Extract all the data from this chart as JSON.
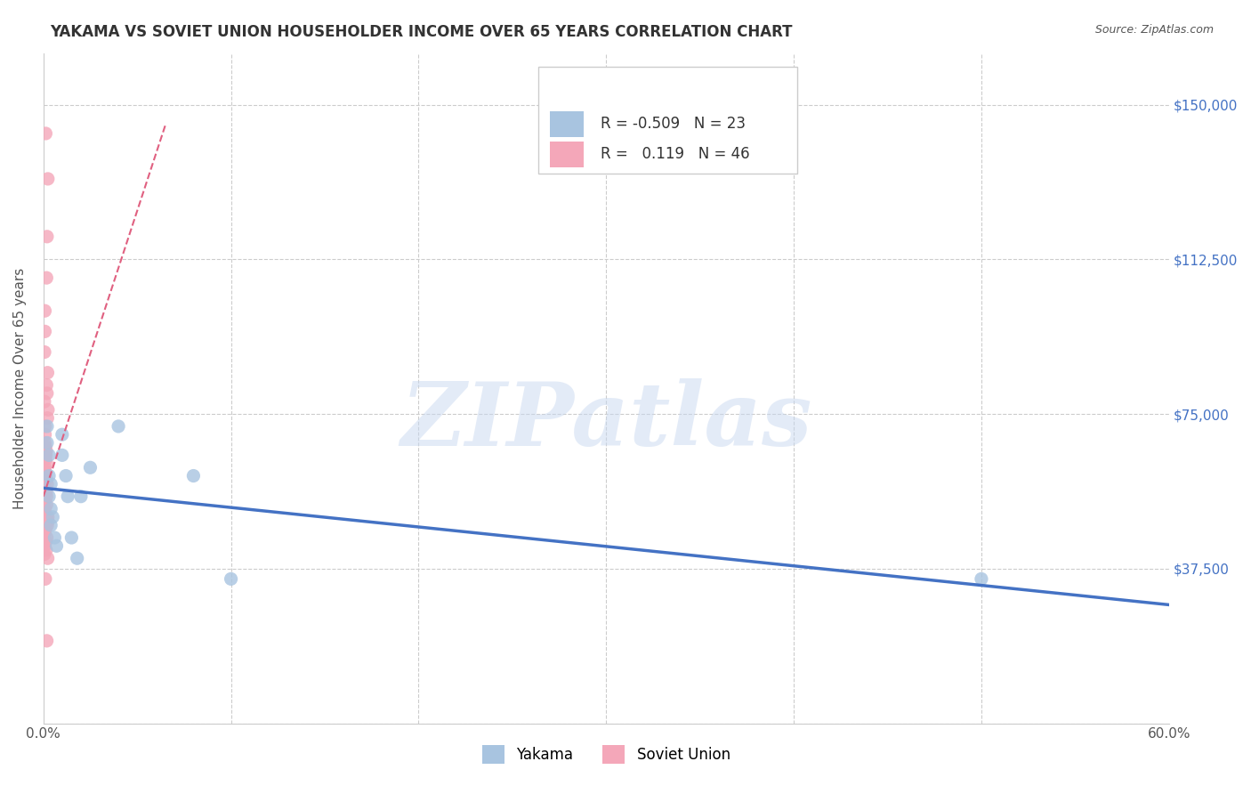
{
  "title": "YAKAMA VS SOVIET UNION HOUSEHOLDER INCOME OVER 65 YEARS CORRELATION CHART",
  "source": "Source: ZipAtlas.com",
  "ylabel": "Householder Income Over 65 years",
  "xlim": [
    0.0,
    0.6
  ],
  "ylim": [
    0,
    162500
  ],
  "yticks": [
    0,
    37500,
    75000,
    112500,
    150000
  ],
  "ytick_labels": [
    "",
    "$37,500",
    "$75,000",
    "$112,500",
    "$150,000"
  ],
  "legend_blue_r": "-0.509",
  "legend_blue_n": "23",
  "legend_pink_r": "0.119",
  "legend_pink_n": "46",
  "blue_color": "#a8c4e0",
  "pink_color": "#f4a7b9",
  "blue_line_color": "#4472c4",
  "pink_line_color": "#e06080",
  "watermark": "ZIPatlas",
  "watermark_color": "#c8d8f0",
  "grid_color": "#cccccc",
  "title_color": "#333333",
  "axis_label_color": "#555555",
  "yakama_x": [
    0.002,
    0.002,
    0.003,
    0.003,
    0.003,
    0.004,
    0.004,
    0.004,
    0.005,
    0.006,
    0.007,
    0.01,
    0.01,
    0.012,
    0.013,
    0.015,
    0.018,
    0.02,
    0.025,
    0.04,
    0.08,
    0.1,
    0.5
  ],
  "yakama_y": [
    68000,
    72000,
    65000,
    60000,
    55000,
    58000,
    52000,
    48000,
    50000,
    45000,
    43000,
    70000,
    65000,
    60000,
    55000,
    45000,
    40000,
    55000,
    62000,
    72000,
    60000,
    35000,
    35000
  ],
  "soviet_y": [
    143000,
    132000,
    118000,
    108000,
    100000,
    95000,
    90000,
    85000,
    82000,
    80000,
    78000,
    76000,
    74000,
    72000,
    70000,
    68000,
    67000,
    66000,
    65000,
    64000,
    63000,
    62000,
    61000,
    60000,
    59000,
    58000,
    57000,
    56000,
    55000,
    54000,
    53000,
    52000,
    51000,
    50000,
    49000,
    48000,
    47000,
    46000,
    45000,
    44000,
    43000,
    42000,
    41000,
    40000,
    35000,
    20000
  ],
  "pink_line_x": [
    0.0,
    0.065
  ],
  "pink_line_y": [
    55000,
    145000
  ],
  "blue_line_x": [
    0.0,
    0.6
  ],
  "xticks": [
    0.0,
    0.1,
    0.2,
    0.3,
    0.4,
    0.5,
    0.6
  ],
  "xtick_labels": [
    "0.0%",
    "",
    "",
    "",
    "",
    "",
    "60.0%"
  ]
}
